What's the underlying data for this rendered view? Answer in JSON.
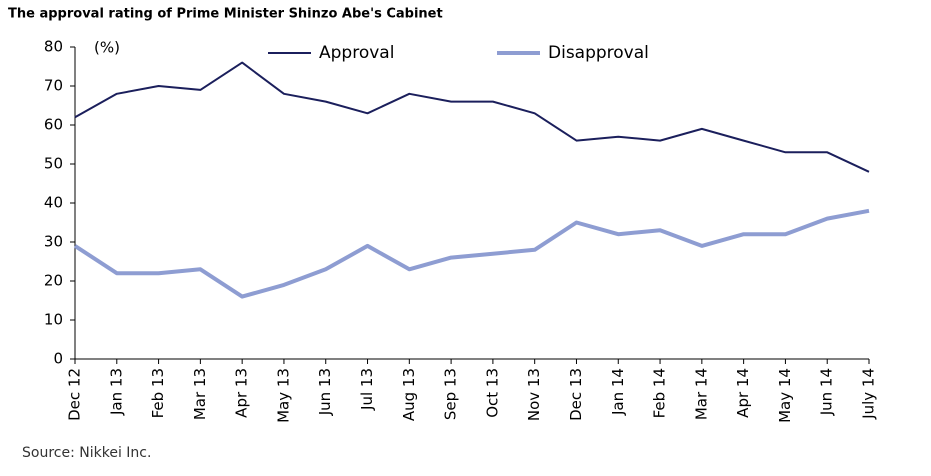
{
  "chart_data": {
    "type": "line",
    "title": "The approval rating of Prime Minister Shinzo Abe's Cabinet",
    "y_unit": "(%)",
    "source": "Source: Nikkei Inc.",
    "categories": [
      "Dec 12",
      "Jan 13",
      "Feb 13",
      "Mar 13",
      "Apr 13",
      "May 13",
      "Jun 13",
      "Jul 13",
      "Aug 13",
      "Sep 13",
      "Oct 13",
      "Nov 13",
      "Dec 13",
      "Jan 14",
      "Feb 14",
      "Mar 14",
      "Apr 14",
      "May 14",
      "Jun 14",
      "July 14"
    ],
    "series": [
      {
        "name": "Approval",
        "color": "#1b1f5c",
        "values": [
          62,
          68,
          70,
          69,
          76,
          68,
          66,
          63,
          68,
          66,
          66,
          63,
          56,
          57,
          56,
          59,
          56,
          53,
          53,
          48
        ]
      },
      {
        "name": "Disapproval",
        "color": "#8e9dd2",
        "values": [
          29,
          22,
          22,
          23,
          16,
          19,
          23,
          29,
          23,
          26,
          27,
          28,
          35,
          32,
          33,
          29,
          32,
          32,
          36,
          38
        ]
      }
    ],
    "ylim": [
      0,
      80
    ],
    "yticks": [
      0,
      10,
      20,
      30,
      40,
      50,
      60,
      70,
      80
    ]
  }
}
